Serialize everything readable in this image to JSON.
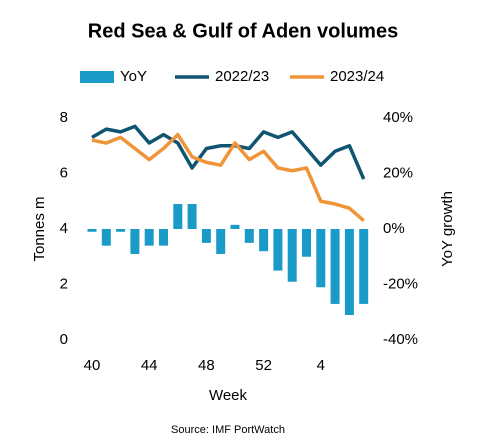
{
  "chart_data": {
    "type": "combo",
    "title": "Red Sea & Gulf of Aden volumes",
    "xlabel": "Week",
    "ylabel": "Tonnes m",
    "y2label": "YoY growth",
    "source": "Source: IMF PortWatch",
    "categories": [
      "40",
      null,
      null,
      null,
      "44",
      null,
      null,
      null,
      "48",
      null,
      null,
      null,
      "52",
      null,
      null,
      null,
      "4",
      null,
      null,
      null
    ],
    "ylim": [
      0,
      8
    ],
    "yticks": [
      0,
      2,
      4,
      6,
      8
    ],
    "y2lim": [
      -40,
      40
    ],
    "y2ticks": [
      {
        "value": -40,
        "label": "-40%"
      },
      {
        "value": -20,
        "label": "-20%"
      },
      {
        "value": 0,
        "label": "0%"
      },
      {
        "value": 20,
        "label": "20%"
      },
      {
        "value": 40,
        "label": "40%"
      }
    ],
    "legend": "top",
    "series": [
      {
        "name": "YoY",
        "type": "bar",
        "axis": "y2",
        "color": "#1a9bc7",
        "values": [
          -1,
          -6,
          -1,
          -9,
          -6,
          -6,
          9,
          9,
          -5,
          -9,
          1.5,
          -5,
          -8,
          -15,
          -19,
          -10,
          -21,
          -27,
          -31,
          -27
        ]
      },
      {
        "name": "2022/23",
        "type": "line",
        "color": "#0f5470",
        "values": [
          7.3,
          7.6,
          7.5,
          7.7,
          7.1,
          7.4,
          7.1,
          6.2,
          6.9,
          7.0,
          7.0,
          6.9,
          7.5,
          7.3,
          7.5,
          6.9,
          6.3,
          6.8,
          7.0,
          5.8
        ]
      },
      {
        "name": "2023/24",
        "type": "line",
        "color": "#f0943a",
        "values": [
          7.2,
          7.1,
          7.3,
          6.9,
          6.5,
          6.9,
          7.4,
          6.6,
          6.4,
          6.3,
          7.1,
          6.5,
          6.8,
          6.2,
          6.1,
          6.2,
          5.0,
          4.9,
          4.75,
          4.3
        ]
      }
    ]
  }
}
